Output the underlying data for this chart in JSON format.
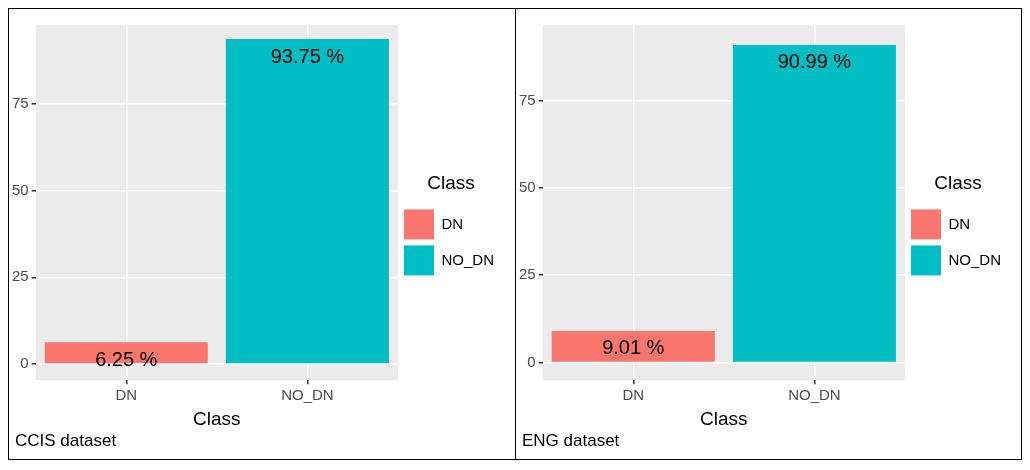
{
  "chart_data": [
    {
      "type": "bar",
      "categories": [
        "DN",
        "NO_DN"
      ],
      "series": [
        {
          "name": "DN",
          "color": "#f8766d",
          "values": [
            6.25,
            null
          ],
          "value_labels": [
            "6.25 %",
            null
          ]
        },
        {
          "name": "NO_DN",
          "color": "#00bfc4",
          "values": [
            null,
            93.75
          ],
          "value_labels": [
            null,
            "93.75 %"
          ]
        }
      ],
      "xlabel": "Class",
      "legend_title": "Class",
      "legend": "right",
      "grid": true,
      "ylim": [
        -4.7,
        97.8
      ],
      "yticks": [
        0,
        25,
        50,
        75
      ],
      "annotations": [
        "CCIS dataset"
      ]
    },
    {
      "type": "bar",
      "categories": [
        "DN",
        "NO_DN"
      ],
      "series": [
        {
          "name": "DN",
          "color": "#f8766d",
          "values": [
            9.01,
            null
          ],
          "value_labels": [
            "9.01 %",
            null
          ]
        },
        {
          "name": "NO_DN",
          "color": "#00bfc4",
          "values": [
            null,
            90.99
          ],
          "value_labels": [
            null,
            "90.99 %"
          ]
        }
      ],
      "xlabel": "Class",
      "legend_title": "Class",
      "legend": "right",
      "grid": true,
      "ylim": [
        -5.1,
        96.7
      ],
      "yticks": [
        0,
        25,
        50,
        75
      ],
      "annotations": [
        "ENG dataset"
      ]
    }
  ]
}
